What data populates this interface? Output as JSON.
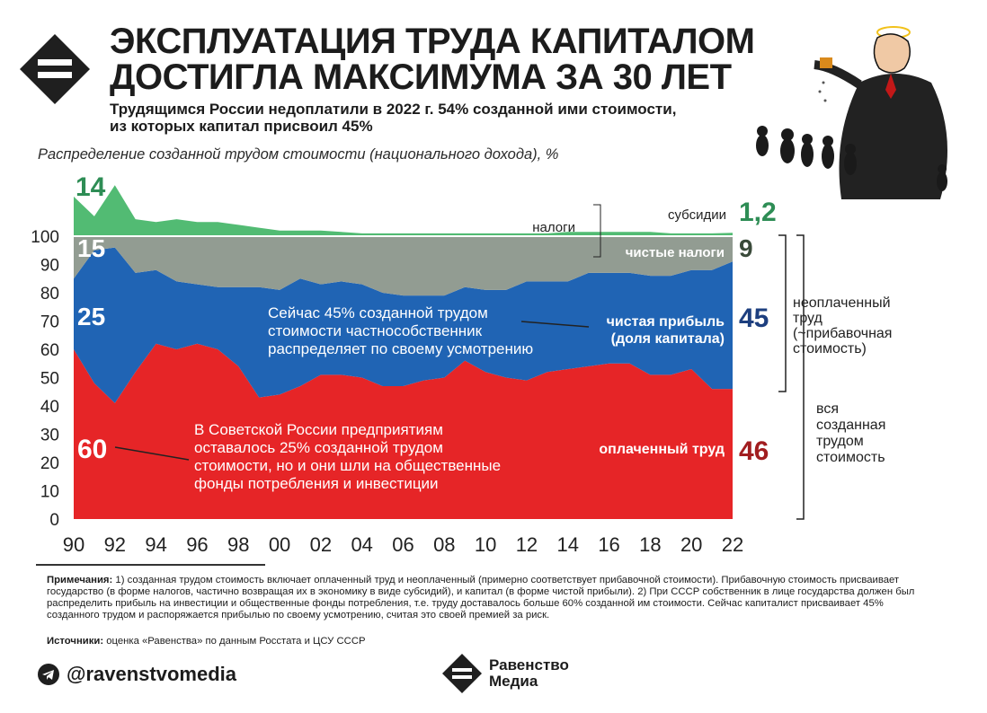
{
  "header": {
    "title_line1": "ЭКСПЛУАТАЦИЯ ТРУДА КАПИТАЛОМ",
    "title_line2": "ДОСТИГЛА МАКСИМУМА ЗА 30 ЛЕТ",
    "subtitle_line1": "Трудящимся России недоплатили в 2022 г. 54% созданной ими стоимости,",
    "subtitle_line2": "из которых капитал присвоил 45%",
    "caption": "Распределение созданной трудом стоимости (национального дохода), %"
  },
  "chart_data": {
    "type": "area",
    "x": [
      1990,
      1991,
      1992,
      1993,
      1994,
      1995,
      1996,
      1997,
      1998,
      1999,
      2000,
      2001,
      2002,
      2003,
      2004,
      2005,
      2006,
      2007,
      2008,
      2009,
      2010,
      2011,
      2012,
      2013,
      2014,
      2015,
      2016,
      2017,
      2018,
      2019,
      2020,
      2021,
      2022
    ],
    "xticks": [
      "90",
      "92",
      "94",
      "96",
      "98",
      "00",
      "02",
      "04",
      "06",
      "08",
      "10",
      "12",
      "14",
      "16",
      "18",
      "20",
      "22"
    ],
    "ylim": [
      0,
      100
    ],
    "yticks": [
      0,
      10,
      20,
      30,
      40,
      50,
      60,
      70,
      80,
      90,
      100
    ],
    "series": [
      {
        "name": "оплаченный труд",
        "color": "#e62527",
        "values": [
          60,
          48,
          41,
          52,
          62,
          60,
          62,
          60,
          54,
          43,
          44,
          47,
          51,
          51,
          50,
          47,
          47,
          49,
          50,
          56,
          52,
          50,
          49,
          52,
          53,
          54,
          55,
          55,
          51,
          51,
          53,
          46,
          46
        ]
      },
      {
        "name": "чистая прибыль (доля капитала)",
        "color": "#2064b4",
        "values": [
          25,
          47,
          55,
          35,
          26,
          24,
          21,
          22,
          28,
          39,
          37,
          38,
          32,
          33,
          33,
          33,
          32,
          30,
          29,
          26,
          29,
          31,
          35,
          32,
          31,
          33,
          32,
          32,
          35,
          35,
          35,
          42,
          45
        ]
      },
      {
        "name": "чистые налоги",
        "color": "#929c92",
        "values": [
          15,
          5,
          4,
          13,
          12,
          16,
          17,
          18,
          18,
          18,
          19,
          15,
          17,
          16,
          17,
          20,
          21,
          21,
          21,
          18,
          19,
          19,
          16,
          16,
          16,
          13,
          13,
          13,
          14,
          14,
          12,
          12,
          9
        ]
      },
      {
        "name": "субсидии",
        "color": "#52bb73",
        "values": [
          14,
          7,
          18,
          6,
          5,
          6,
          5,
          5,
          4,
          3,
          2,
          2,
          2,
          1.5,
          1,
          1,
          1,
          1,
          1,
          1,
          1,
          1,
          1,
          1,
          1.5,
          1.5,
          1.5,
          1.5,
          1.5,
          1,
          1,
          1,
          1.2
        ]
      }
    ],
    "start_labels": {
      "subsidies": "14",
      "taxes": "15",
      "profit": "25",
      "paid": "60"
    },
    "end_labels": {
      "subsidies": "1,2",
      "taxes": "9",
      "profit": "45",
      "paid": "46"
    },
    "inline_labels": {
      "taxes": "налоги",
      "subsidies": "субсидии",
      "net_taxes": "чистые налоги",
      "profit_1": "чистая прибыль",
      "profit_2": "(доля капитала)",
      "paid": "оплаченный труд"
    },
    "annotations": {
      "profit_note": [
        "Сейчас 45% созданной трудом",
        "стоимости частнособственник",
        "распределяет по своему усмотрению"
      ],
      "soviet_note": [
        "В Советской России предприятиям",
        "оставалось 25% созданной трудом",
        "стоимости, но и они шли на общественные",
        "фонды потребления и инвестиции"
      ]
    },
    "brackets": {
      "unpaid": [
        "неоплаченный",
        "труд",
        "(~прибавочная",
        "стоимость)"
      ],
      "all": [
        "вся",
        "созданная",
        "трудом",
        "стоимость"
      ]
    },
    "colors": {
      "paid_label": "#a11d1f",
      "profit_label": "#1d3f7f",
      "taxes_label": "#3a4a3a",
      "subsidies_label": "#2e8d55"
    }
  },
  "footer": {
    "notes_label": "Примечания:",
    "notes_text": " 1) созданная трудом стоимость включает оплаченный труд и неоплаченный (примерно соответствует прибавочной стоимости). Прибавочную стоимость присваивает государство (в форме налогов, частично возвращая их в экономику в виде субсидий), и капитал (в форме чистой прибыли). 2) При СССР собственник в лице государства должен был распределить прибыль на инвестиции и общественные фонды потребления, т.е. труду доставалось больше 60% созданной им стоимости. Сейчас капиталист присваивает 45% созданного трудом и распоряжается прибылью по своему усмотрению, считая это своей премией за риск.",
    "sources_label": "Источники:",
    "sources_text": " оценка «Равенства» по данным Росстата и ЦСУ СССР",
    "handle": "@ravenstvomedia",
    "brand_line1": "Равенство",
    "brand_line2": "Медиа"
  }
}
